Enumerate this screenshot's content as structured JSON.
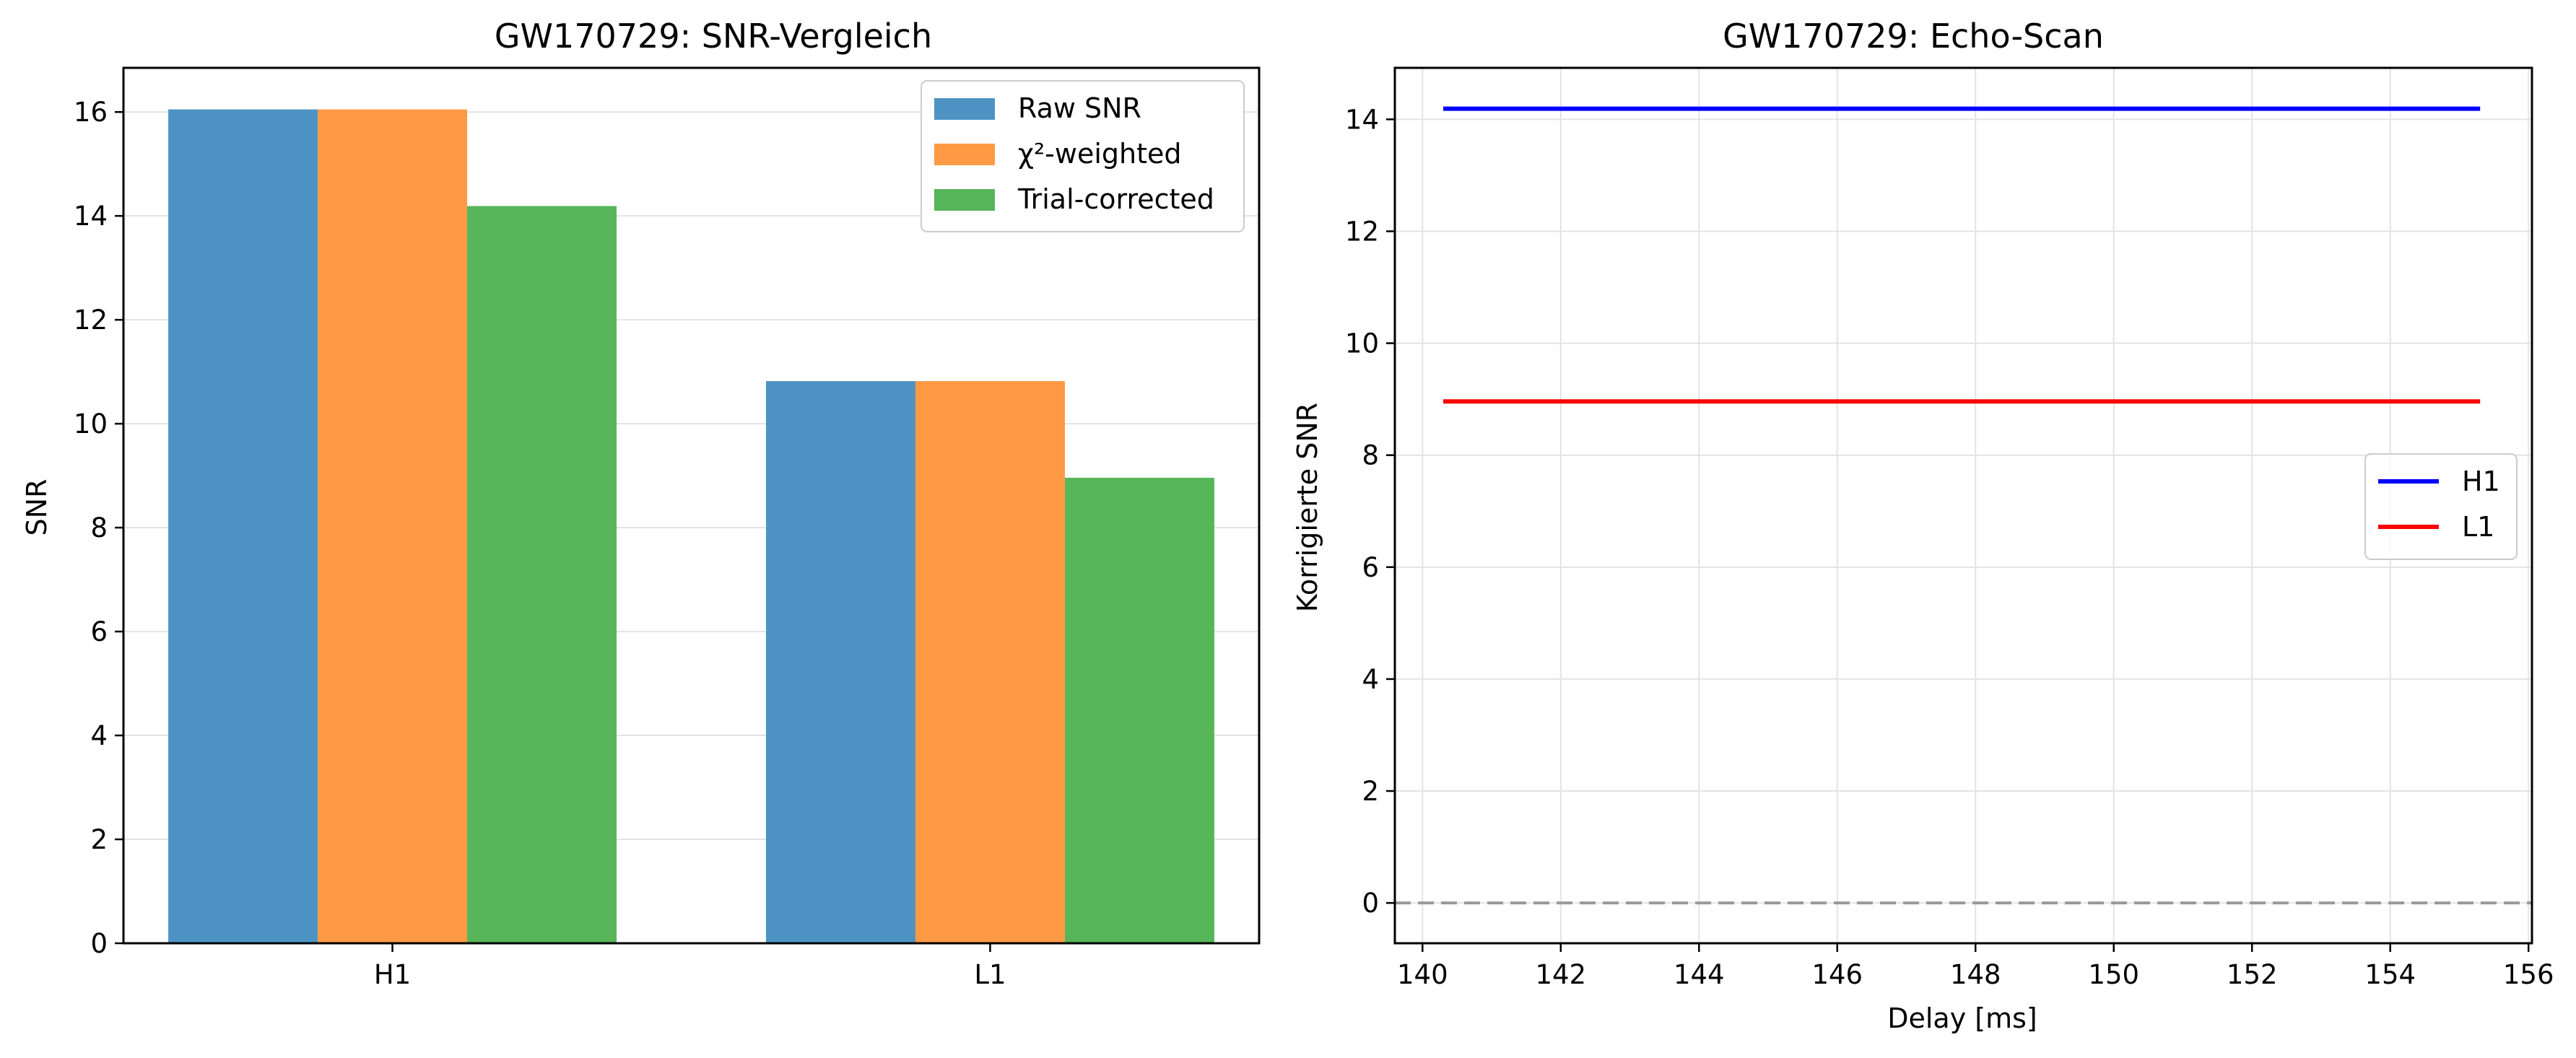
{
  "chart_data": [
    {
      "type": "bar",
      "title": "GW170729: SNR-Vergleich",
      "xlabel": "",
      "ylabel": "SNR",
      "categories": [
        "H1",
        "L1"
      ],
      "ylim": [
        0,
        16.85
      ],
      "yticks": [
        0,
        2,
        4,
        6,
        8,
        10,
        12,
        14,
        16
      ],
      "grid": "y",
      "legend_position": "top-right",
      "series": [
        {
          "name": "Raw SNR",
          "values": [
            16.05,
            10.82
          ],
          "color": "#4c93c4"
        },
        {
          "name": "χ²-weighted",
          "values": [
            16.05,
            10.82
          ],
          "color": "#fe9a43"
        },
        {
          "name": "Trial-corrected",
          "values": [
            14.19,
            8.96
          ],
          "color": "#57b55a"
        }
      ]
    },
    {
      "type": "line",
      "title": "GW170729: Echo-Scan",
      "xlabel": "Delay [ms]",
      "ylabel": "Korrigierte SNR",
      "xlim": [
        139.6,
        156.05
      ],
      "ylim": [
        -0.72,
        14.92
      ],
      "xticks": [
        140,
        142,
        144,
        146,
        148,
        150,
        152,
        154,
        156
      ],
      "yticks": [
        0,
        2,
        4,
        6,
        8,
        10,
        12,
        14
      ],
      "grid": "both",
      "legend_position": "center-right",
      "reference_line": {
        "y": 0,
        "style": "dashed",
        "color": "#999999"
      },
      "series": [
        {
          "name": "H1",
          "x": [
            140.3,
            155.3
          ],
          "y": [
            14.19,
            14.19
          ],
          "color": "#0000ff"
        },
        {
          "name": "L1",
          "x": [
            140.3,
            155.3
          ],
          "y": [
            8.96,
            8.96
          ],
          "color": "#ff0000"
        }
      ]
    }
  ]
}
